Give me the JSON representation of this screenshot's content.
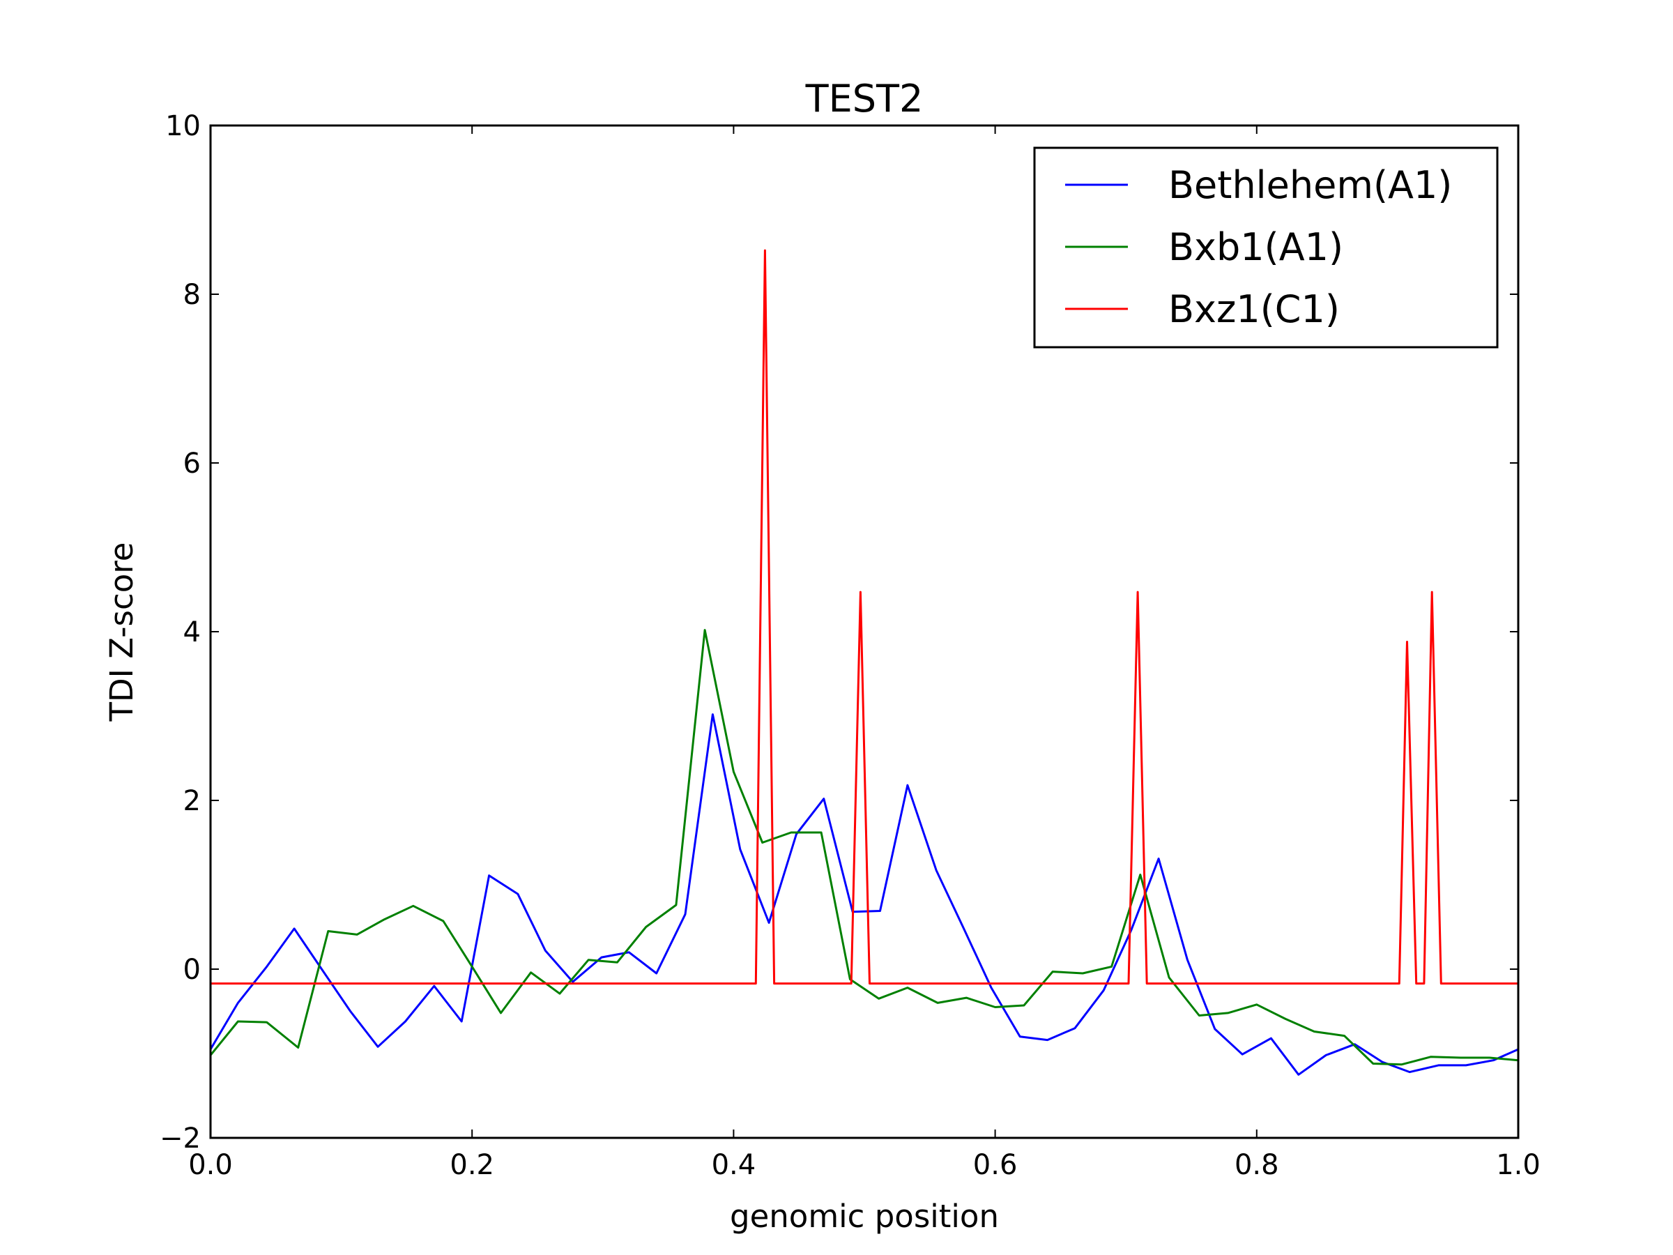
{
  "chart_data": {
    "type": "line",
    "title": "TEST2",
    "xlabel": "genomic position",
    "ylabel": "TDI Z-score",
    "xlim": [
      0.0,
      1.0
    ],
    "ylim": [
      -2,
      10
    ],
    "xticks": [
      0.0,
      0.2,
      0.4,
      0.6,
      0.8,
      1.0
    ],
    "xtick_labels": [
      "0.0",
      "0.2",
      "0.4",
      "0.6",
      "0.8",
      "1.0"
    ],
    "yticks": [
      -2,
      0,
      2,
      4,
      6,
      8,
      10
    ],
    "ytick_labels": [
      "−2",
      "0",
      "2",
      "4",
      "6",
      "8",
      "10"
    ],
    "grid": false,
    "legend_position": "top-right",
    "series": [
      {
        "name": "Bethlehem(A1)",
        "color": "#0000ff",
        "x": [
          0.0,
          0.021,
          0.043,
          0.064,
          0.085,
          0.107,
          0.128,
          0.149,
          0.171,
          0.192,
          0.213,
          0.235,
          0.256,
          0.277,
          0.299,
          0.32,
          0.341,
          0.363,
          0.384,
          0.405,
          0.427,
          0.448,
          0.469,
          0.491,
          0.512,
          0.533,
          0.555,
          0.576,
          0.597,
          0.619,
          0.64,
          0.661,
          0.683,
          0.704,
          0.725,
          0.747,
          0.768,
          0.789,
          0.811,
          0.832,
          0.853,
          0.875,
          0.896,
          0.917,
          0.939,
          0.96,
          0.981,
          1.0
        ],
        "y": [
          -0.95,
          -0.4,
          0.03,
          0.48,
          0.0,
          -0.5,
          -0.92,
          -0.62,
          -0.2,
          -0.62,
          1.11,
          0.89,
          0.22,
          -0.15,
          0.14,
          0.2,
          -0.05,
          0.65,
          3.02,
          1.42,
          0.55,
          1.6,
          2.02,
          0.68,
          0.69,
          2.18,
          1.17,
          0.48,
          -0.22,
          -0.8,
          -0.84,
          -0.7,
          -0.25,
          0.46,
          1.31,
          0.11,
          -0.71,
          -1.01,
          -0.82,
          -1.25,
          -1.02,
          -0.89,
          -1.1,
          -1.22,
          -1.14,
          -1.14,
          -1.08,
          -0.95
        ]
      },
      {
        "name": "Bxb1(A1)",
        "color": "#008000",
        "x": [
          0.0,
          0.021,
          0.043,
          0.067,
          0.09,
          0.112,
          0.133,
          0.155,
          0.178,
          0.2,
          0.222,
          0.245,
          0.267,
          0.289,
          0.311,
          0.333,
          0.356,
          0.378,
          0.4,
          0.422,
          0.444,
          0.467,
          0.489,
          0.511,
          0.533,
          0.556,
          0.578,
          0.6,
          0.622,
          0.644,
          0.667,
          0.689,
          0.711,
          0.733,
          0.756,
          0.778,
          0.8,
          0.822,
          0.844,
          0.867,
          0.889,
          0.911,
          0.933,
          0.956,
          0.978,
          1.0
        ],
        "y": [
          -1.02,
          -0.62,
          -0.63,
          -0.93,
          0.45,
          0.41,
          0.59,
          0.75,
          0.57,
          0.03,
          -0.52,
          -0.04,
          -0.29,
          0.11,
          0.08,
          0.5,
          0.76,
          4.02,
          2.34,
          1.5,
          1.62,
          1.62,
          -0.12,
          -0.35,
          -0.22,
          -0.4,
          -0.34,
          -0.45,
          -0.43,
          -0.03,
          -0.05,
          0.03,
          1.12,
          -0.1,
          -0.55,
          -0.52,
          -0.42,
          -0.59,
          -0.74,
          -0.79,
          -1.12,
          -1.13,
          -1.04,
          -1.05,
          -1.05,
          -1.08
        ]
      },
      {
        "name": "Bxz1(C1)",
        "color": "#ff0000",
        "x": [
          0.0,
          0.417,
          0.424,
          0.431,
          0.49,
          0.497,
          0.504,
          0.702,
          0.709,
          0.716,
          0.909,
          0.915,
          0.922,
          0.928,
          0.934,
          0.941,
          1.0
        ],
        "y": [
          -0.17,
          -0.17,
          8.52,
          -0.17,
          -0.17,
          4.47,
          -0.17,
          -0.17,
          4.47,
          -0.17,
          -0.17,
          3.88,
          -0.17,
          -0.17,
          4.47,
          -0.17,
          -0.17
        ]
      }
    ]
  }
}
